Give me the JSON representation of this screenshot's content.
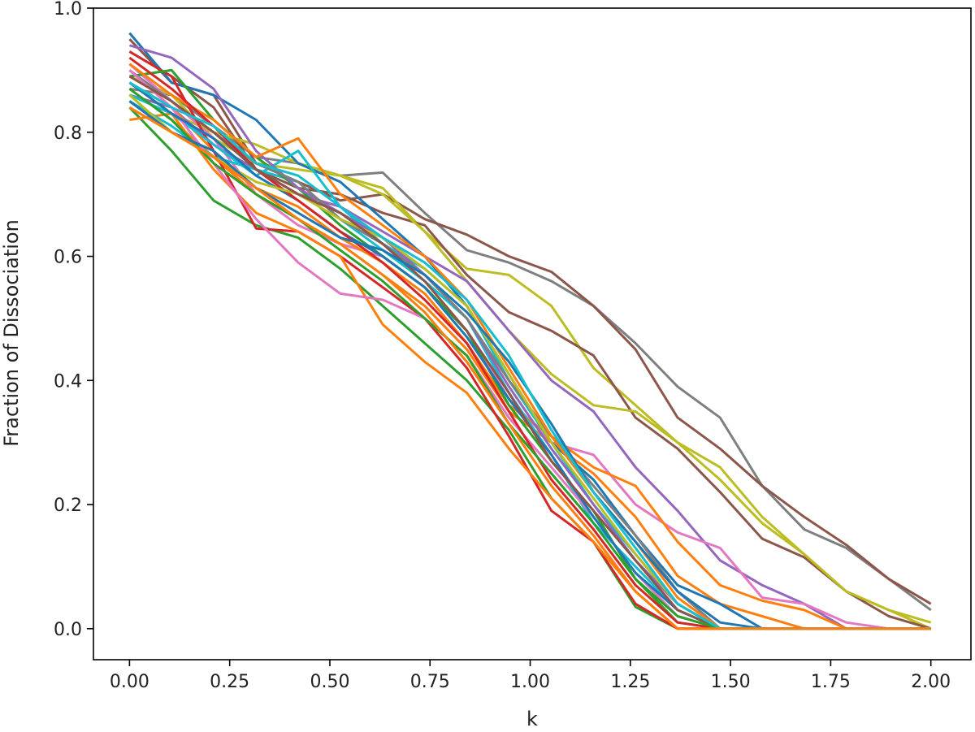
{
  "chart_data": {
    "type": "line",
    "title": "",
    "xlabel": "k",
    "ylabel": "Fraction of Dissociation",
    "xlim": [
      -0.09,
      2.1
    ],
    "ylim": [
      -0.05,
      1.0
    ],
    "grid": false,
    "legend": "none",
    "x": [
      0.0,
      0.105,
      0.21,
      0.316,
      0.421,
      0.526,
      0.632,
      0.737,
      0.842,
      0.947,
      1.053,
      1.158,
      1.263,
      1.368,
      1.474,
      1.579,
      1.684,
      1.789,
      1.895,
      2.0
    ],
    "xticks": [
      "0.00",
      "0.25",
      "0.50",
      "0.75",
      "1.00",
      "1.25",
      "1.50",
      "1.75",
      "2.00"
    ],
    "yticks": [
      "0.0",
      "0.2",
      "0.4",
      "0.6",
      "0.8",
      "1.0"
    ],
    "colors": [
      "#1f77b4",
      "#ff7f0e",
      "#2ca02c",
      "#d62728",
      "#9467bd",
      "#8c564b",
      "#e377c2",
      "#7f7f7f",
      "#bcbd22",
      "#17becf"
    ],
    "series": [
      {
        "color": "#7f7f7f",
        "values": [
          0.87,
          0.86,
          0.81,
          0.76,
          0.75,
          0.73,
          0.735,
          0.67,
          0.61,
          0.59,
          0.56,
          0.52,
          0.46,
          0.39,
          0.34,
          0.23,
          0.16,
          0.13,
          0.08,
          0.03
        ]
      },
      {
        "color": "#8c564b",
        "values": [
          0.95,
          0.88,
          0.86,
          0.75,
          0.72,
          0.69,
          0.7,
          0.66,
          0.635,
          0.6,
          0.575,
          0.52,
          0.45,
          0.34,
          0.29,
          0.23,
          0.18,
          0.135,
          0.08,
          0.04
        ]
      },
      {
        "color": "#bcbd22",
        "values": [
          0.88,
          0.83,
          0.8,
          0.78,
          0.75,
          0.73,
          0.71,
          0.64,
          0.58,
          0.57,
          0.52,
          0.42,
          0.36,
          0.3,
          0.26,
          0.18,
          0.12,
          0.06,
          0.03,
          0.0
        ]
      },
      {
        "color": "#8c564b",
        "values": [
          0.93,
          0.89,
          0.84,
          0.74,
          0.71,
          0.7,
          0.67,
          0.65,
          0.57,
          0.51,
          0.48,
          0.44,
          0.34,
          0.29,
          0.22,
          0.145,
          0.115,
          0.06,
          0.02,
          0.0
        ]
      },
      {
        "color": "#bcbd22",
        "values": [
          0.89,
          0.86,
          0.79,
          0.75,
          0.74,
          0.73,
          0.7,
          0.64,
          0.56,
          0.48,
          0.41,
          0.36,
          0.35,
          0.3,
          0.24,
          0.17,
          0.12,
          0.06,
          0.03,
          0.01
        ]
      },
      {
        "color": "#9467bd",
        "values": [
          0.86,
          0.84,
          0.78,
          0.74,
          0.7,
          0.68,
          0.64,
          0.6,
          0.56,
          0.48,
          0.4,
          0.35,
          0.26,
          0.19,
          0.11,
          0.07,
          0.04,
          0.0,
          0.0,
          0.0
        ]
      },
      {
        "color": "#e377c2",
        "values": [
          0.91,
          0.85,
          0.79,
          0.7,
          0.65,
          0.62,
          0.6,
          0.55,
          0.48,
          0.37,
          0.3,
          0.28,
          0.2,
          0.155,
          0.13,
          0.05,
          0.04,
          0.01,
          0.0,
          0.0
        ]
      },
      {
        "color": "#ff7f0e",
        "values": [
          0.88,
          0.84,
          0.77,
          0.71,
          0.68,
          0.63,
          0.59,
          0.54,
          0.46,
          0.36,
          0.31,
          0.26,
          0.23,
          0.14,
          0.07,
          0.045,
          0.03,
          0.0,
          0.0,
          0.0
        ]
      },
      {
        "color": "#ff7f0e",
        "values": [
          0.87,
          0.82,
          0.76,
          0.7,
          0.66,
          0.62,
          0.57,
          0.52,
          0.45,
          0.35,
          0.3,
          0.25,
          0.18,
          0.085,
          0.04,
          0.02,
          0.0,
          0.0,
          0.0,
          0.0
        ]
      },
      {
        "color": "#1f77b4",
        "values": [
          0.96,
          0.88,
          0.86,
          0.82,
          0.75,
          0.72,
          0.66,
          0.6,
          0.52,
          0.41,
          0.3,
          0.24,
          0.15,
          0.07,
          0.04,
          0.0,
          0.0,
          0.0,
          0.0,
          0.0
        ]
      },
      {
        "color": "#2ca02c",
        "values": [
          0.84,
          0.77,
          0.69,
          0.65,
          0.63,
          0.58,
          0.52,
          0.46,
          0.4,
          0.32,
          0.21,
          0.14,
          0.035,
          0.0,
          0.0,
          0.0,
          0.0,
          0.0,
          0.0,
          0.0
        ]
      },
      {
        "color": "#d62728",
        "values": [
          0.93,
          0.89,
          0.77,
          0.645,
          0.64,
          0.6,
          0.55,
          0.5,
          0.42,
          0.31,
          0.19,
          0.14,
          0.04,
          0.0,
          0.0,
          0.0,
          0.0,
          0.0,
          0.0,
          0.0
        ]
      },
      {
        "color": "#ff7f0e",
        "values": [
          0.82,
          0.83,
          0.74,
          0.67,
          0.64,
          0.6,
          0.49,
          0.43,
          0.38,
          0.29,
          0.21,
          0.14,
          0.06,
          0.0,
          0.0,
          0.0,
          0.0,
          0.0,
          0.0,
          0.0
        ]
      },
      {
        "color": "#17becf",
        "values": [
          0.85,
          0.81,
          0.76,
          0.74,
          0.72,
          0.66,
          0.61,
          0.56,
          0.5,
          0.38,
          0.28,
          0.17,
          0.1,
          0.03,
          0.0,
          0.0,
          0.0,
          0.0,
          0.0,
          0.0
        ]
      },
      {
        "color": "#17becf",
        "values": [
          0.86,
          0.83,
          0.78,
          0.73,
          0.77,
          0.68,
          0.62,
          0.58,
          0.52,
          0.4,
          0.3,
          0.2,
          0.12,
          0.04,
          0.0,
          0.0,
          0.0,
          0.0,
          0.0,
          0.0
        ]
      },
      {
        "color": "#2ca02c",
        "values": [
          0.89,
          0.9,
          0.82,
          0.76,
          0.71,
          0.65,
          0.6,
          0.55,
          0.48,
          0.36,
          0.27,
          0.19,
          0.08,
          0.01,
          0.0,
          0.0,
          0.0,
          0.0,
          0.0,
          0.0
        ]
      },
      {
        "color": "#9467bd",
        "values": [
          0.94,
          0.92,
          0.87,
          0.77,
          0.71,
          0.67,
          0.63,
          0.57,
          0.5,
          0.39,
          0.29,
          0.2,
          0.11,
          0.04,
          0.0,
          0.0,
          0.0,
          0.0,
          0.0,
          0.0
        ]
      },
      {
        "color": "#7f7f7f",
        "values": [
          0.9,
          0.85,
          0.8,
          0.75,
          0.72,
          0.66,
          0.62,
          0.57,
          0.5,
          0.4,
          0.31,
          0.23,
          0.15,
          0.06,
          0.0,
          0.0,
          0.0,
          0.0,
          0.0,
          0.0
        ]
      },
      {
        "color": "#ff7f0e",
        "values": [
          0.91,
          0.86,
          0.82,
          0.76,
          0.79,
          0.7,
          0.65,
          0.6,
          0.53,
          0.42,
          0.31,
          0.22,
          0.14,
          0.05,
          0.0,
          0.0,
          0.0,
          0.0,
          0.0,
          0.0
        ]
      },
      {
        "color": "#e377c2",
        "values": [
          0.9,
          0.84,
          0.75,
          0.66,
          0.59,
          0.54,
          0.53,
          0.5,
          0.44,
          0.34,
          0.26,
          0.18,
          0.09,
          0.02,
          0.0,
          0.0,
          0.0,
          0.0,
          0.0,
          0.0
        ]
      },
      {
        "color": "#1f77b4",
        "values": [
          0.88,
          0.83,
          0.79,
          0.73,
          0.69,
          0.64,
          0.6,
          0.55,
          0.47,
          0.37,
          0.28,
          0.18,
          0.09,
          0.03,
          0.0,
          0.0,
          0.0,
          0.0,
          0.0,
          0.0
        ]
      },
      {
        "color": "#d62728",
        "values": [
          0.92,
          0.87,
          0.81,
          0.74,
          0.69,
          0.64,
          0.59,
          0.53,
          0.46,
          0.35,
          0.24,
          0.16,
          0.07,
          0.01,
          0.0,
          0.0,
          0.0,
          0.0,
          0.0,
          0.0
        ]
      },
      {
        "color": "#bcbd22",
        "values": [
          0.86,
          0.8,
          0.76,
          0.72,
          0.7,
          0.66,
          0.63,
          0.58,
          0.52,
          0.41,
          0.3,
          0.21,
          0.12,
          0.04,
          0.0,
          0.0,
          0.0,
          0.0,
          0.0,
          0.0
        ]
      },
      {
        "color": "#8c564b",
        "values": [
          0.89,
          0.85,
          0.8,
          0.74,
          0.7,
          0.67,
          0.62,
          0.56,
          0.48,
          0.38,
          0.27,
          0.19,
          0.11,
          0.03,
          0.0,
          0.0,
          0.0,
          0.0,
          0.0,
          0.0
        ]
      },
      {
        "color": "#2ca02c",
        "values": [
          0.87,
          0.82,
          0.75,
          0.7,
          0.66,
          0.61,
          0.56,
          0.5,
          0.44,
          0.33,
          0.25,
          0.17,
          0.08,
          0.02,
          0.0,
          0.0,
          0.0,
          0.0,
          0.0,
          0.0
        ]
      },
      {
        "color": "#1f77b4",
        "values": [
          0.85,
          0.8,
          0.77,
          0.71,
          0.67,
          0.63,
          0.61,
          0.57,
          0.51,
          0.43,
          0.33,
          0.22,
          0.14,
          0.06,
          0.01,
          0.0,
          0.0,
          0.0,
          0.0,
          0.0
        ]
      },
      {
        "color": "#17becf",
        "values": [
          0.88,
          0.84,
          0.81,
          0.75,
          0.73,
          0.68,
          0.63,
          0.59,
          0.53,
          0.44,
          0.32,
          0.22,
          0.13,
          0.04,
          0.0,
          0.0,
          0.0,
          0.0,
          0.0,
          0.0
        ]
      },
      {
        "color": "#ff7f0e",
        "values": [
          0.84,
          0.8,
          0.76,
          0.71,
          0.66,
          0.62,
          0.57,
          0.51,
          0.43,
          0.33,
          0.23,
          0.15,
          0.06,
          0.0,
          0.0,
          0.0,
          0.0,
          0.0,
          0.0,
          0.0
        ]
      }
    ]
  }
}
